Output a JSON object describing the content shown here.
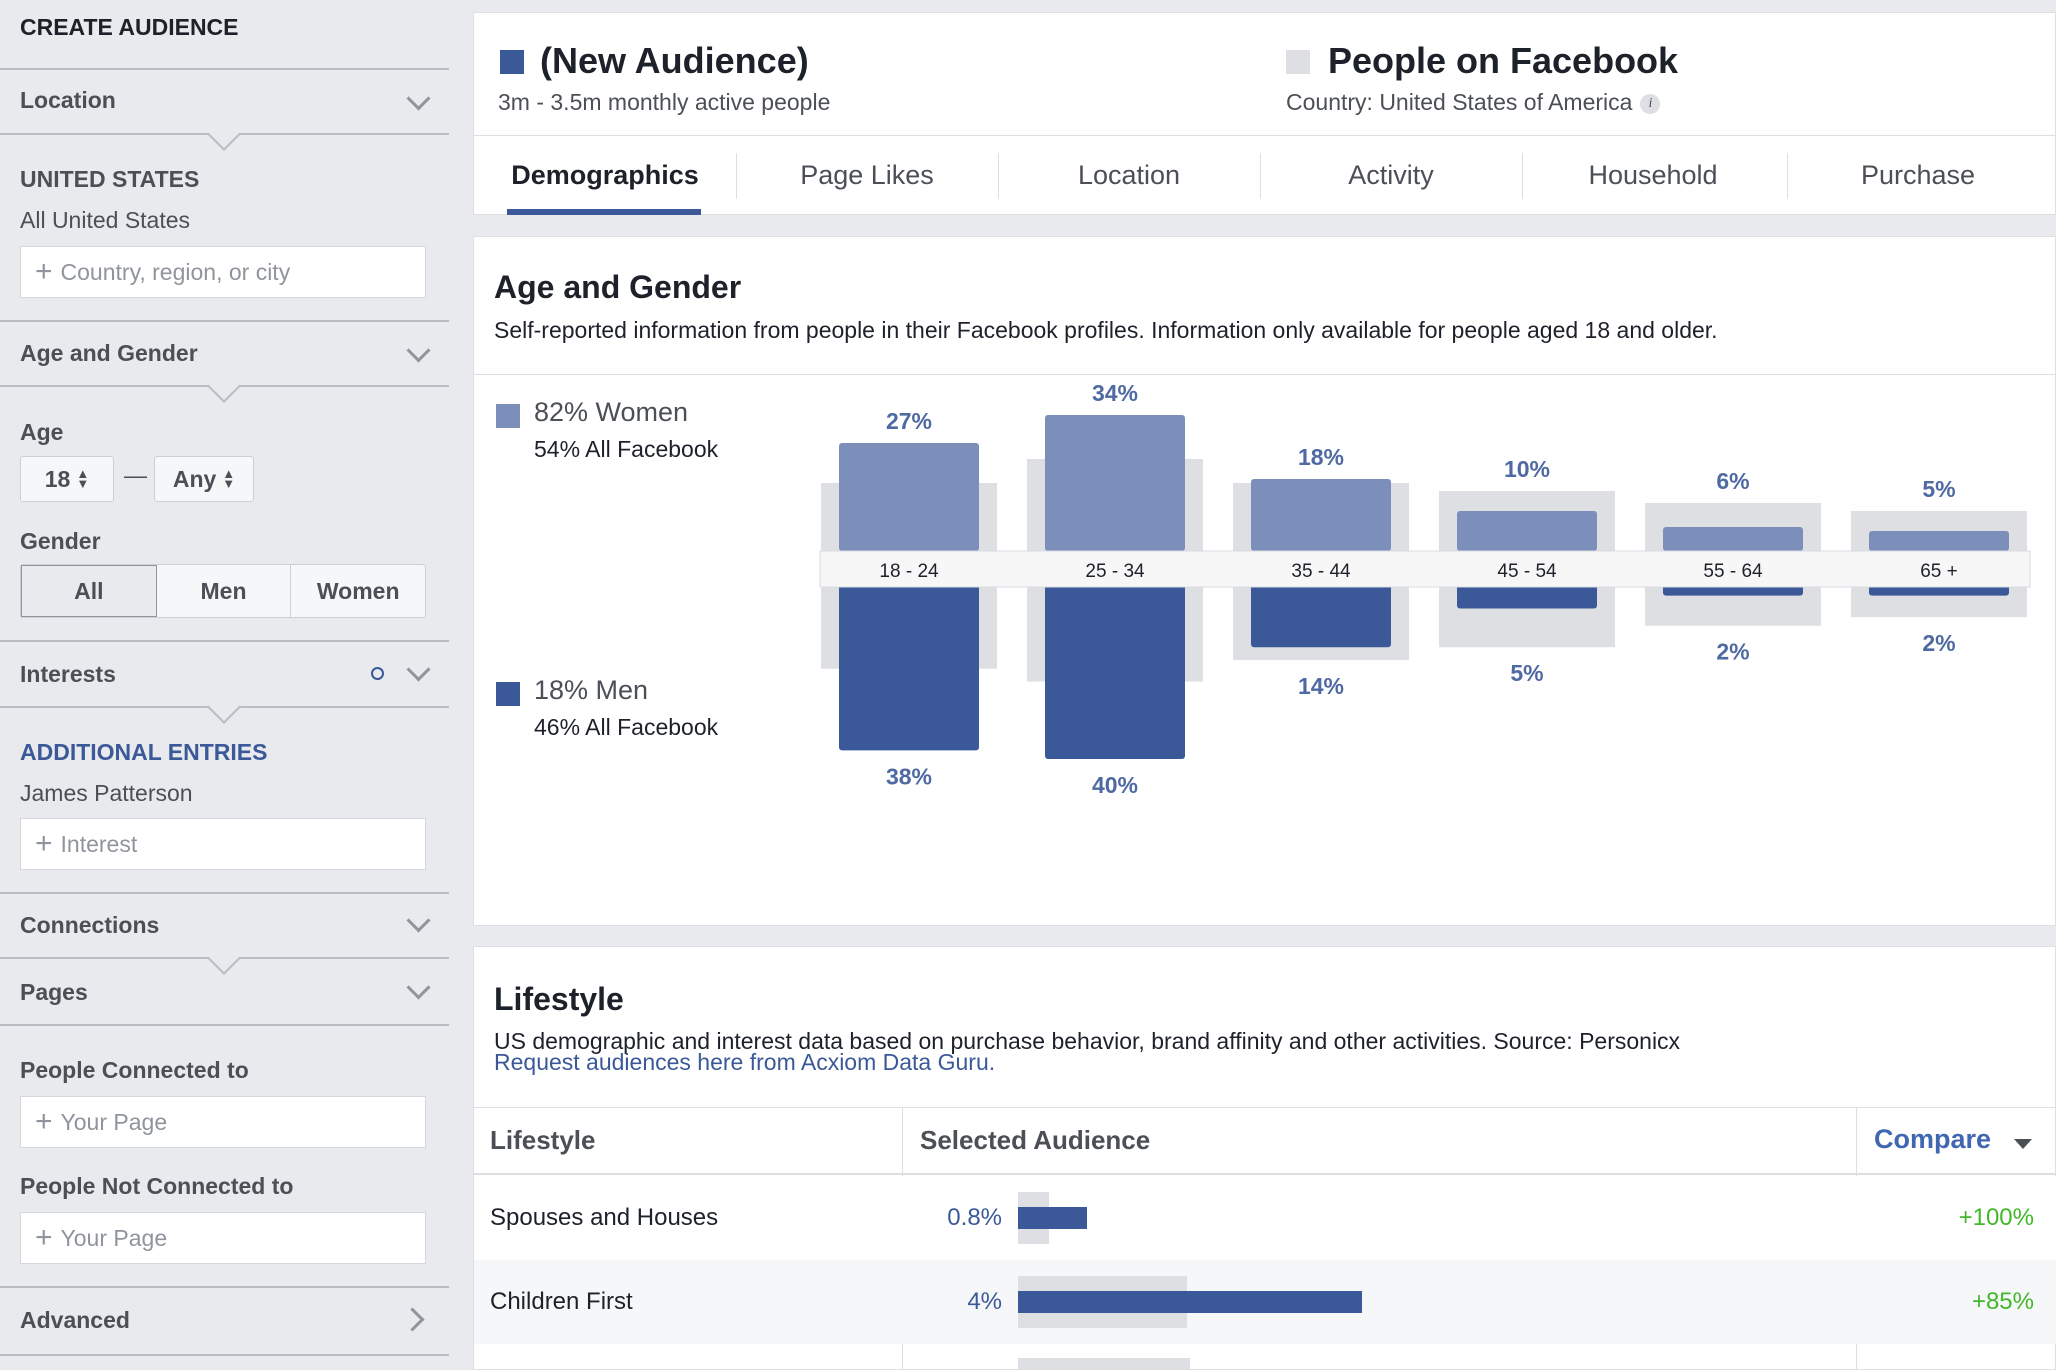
{
  "sidebar": {
    "title": "CREATE AUDIENCE",
    "location": {
      "header": "Location",
      "country": "UNITED STATES",
      "scope": "All United States",
      "input_placeholder": "Country, region, or city"
    },
    "age_gender": {
      "header": "Age and Gender",
      "age_label": "Age",
      "age_min": "18",
      "age_dash": "—",
      "age_max": "Any",
      "gender_label": "Gender",
      "gender_options": [
        "All",
        "Men",
        "Women"
      ],
      "gender_selected": "All"
    },
    "interests": {
      "header": "Interests",
      "additional_label": "ADDITIONAL ENTRIES",
      "entry": "James Patterson",
      "input_placeholder": "Interest"
    },
    "connections": {
      "header": "Connections",
      "pages_header": "Pages",
      "connected_label": "People Connected to",
      "connected_placeholder": "Your Page",
      "not_connected_label": "People Not Connected to",
      "not_connected_placeholder": "Your Page"
    },
    "advanced": "Advanced"
  },
  "header": {
    "audience": {
      "title": "(New Audience)",
      "subtitle": "3m - 3.5m monthly active people",
      "color": "#3b5998"
    },
    "comparison": {
      "title": "People on Facebook",
      "subtitle": "Country: United States of America",
      "color": "#dddfe2"
    },
    "info_icon": "i",
    "tabs": [
      {
        "label": "Demographics",
        "active": true
      },
      {
        "label": "Page Likes"
      },
      {
        "label": "Location"
      },
      {
        "label": "Activity"
      },
      {
        "label": "Household"
      },
      {
        "label": "Purchase"
      }
    ]
  },
  "age_gender": {
    "title": "Age and Gender",
    "description": "Self-reported information from people in their Facebook profiles. Information only available for people aged 18 and older.",
    "women": {
      "label": "82% Women",
      "sub": "54% All Facebook"
    },
    "men": {
      "label": "18% Men",
      "sub": "46% All Facebook"
    }
  },
  "chart_data": {
    "type": "bar",
    "categories": [
      "18 - 24",
      "25 - 34",
      "35 - 44",
      "45 - 54",
      "55 - 64",
      "65 +"
    ],
    "series": [
      {
        "name": "Women",
        "values": [
          27,
          34,
          18,
          10,
          6,
          5
        ],
        "labels": [
          "27%",
          "34%",
          "18%",
          "10%",
          "6%",
          "5%"
        ],
        "color": "#7b8fba"
      },
      {
        "name": "Men",
        "values": [
          38,
          40,
          14,
          5,
          2,
          2
        ],
        "labels": [
          "38%",
          "40%",
          "14%",
          "5%",
          "2%",
          "2%"
        ],
        "color": "#3b5998"
      }
    ],
    "comparison_color": "#dddfe2"
  },
  "lifestyle": {
    "title": "Lifestyle",
    "description": "US demographic and interest data based on purchase behavior, brand affinity and other activities. Source: Personicx",
    "link": "Request audiences here from Acxiom Data Guru.",
    "columns": {
      "name": "Lifestyle",
      "audience": "Selected Audience",
      "compare": "Compare"
    },
    "rows": [
      {
        "name": "Spouses and Houses",
        "pct": "0.8%",
        "value": 0.8,
        "baseline": 0.4,
        "diff": "+100%"
      },
      {
        "name": "Children First",
        "pct": "4%",
        "value": 4,
        "baseline": 2.2,
        "diff": "+85%"
      }
    ]
  }
}
